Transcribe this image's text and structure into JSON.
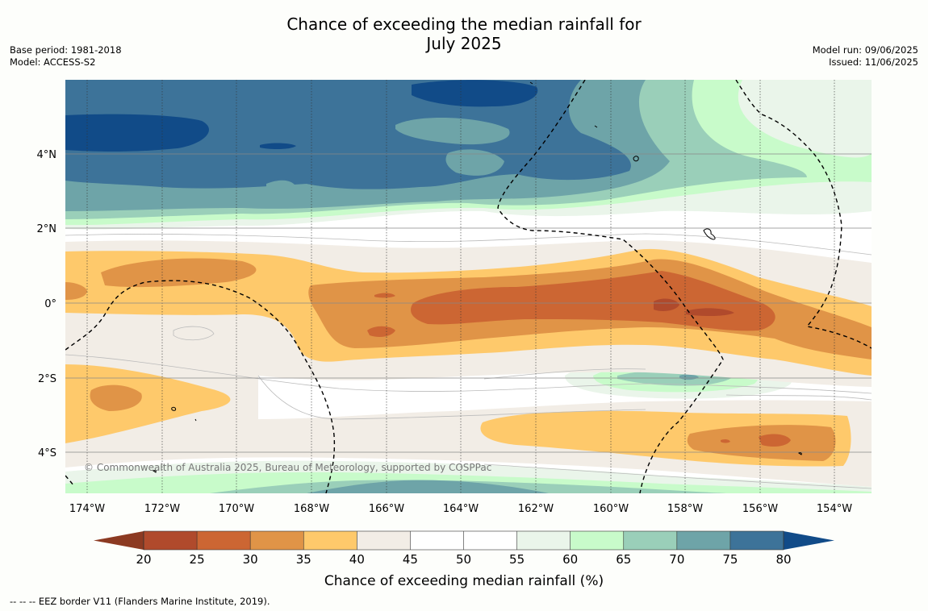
{
  "header": {
    "title_line1": "Chance of exceeding the median rainfall for",
    "title_line2": "July 2025",
    "base_period": "Base period: 1981-2018",
    "model": "Model: ACCESS-S2",
    "model_run": "Model run: 09/06/2025",
    "issued": "Issued: 11/06/2025"
  },
  "map": {
    "lat_labels": [
      "4°N",
      "2°N",
      "0°",
      "2°S",
      "4°S"
    ],
    "lon_labels": [
      "174°W",
      "172°W",
      "170°W",
      "168°W",
      "166°W",
      "164°W",
      "162°W",
      "160°W",
      "158°W",
      "156°W",
      "154°W"
    ],
    "copyright": "© Commonwealth of Australia 2025, Bureau of Meteorology, supported by COSPPac"
  },
  "colorbar": {
    "title": "Chance of exceeding median rainfall (%)",
    "ticks": [
      "20",
      "25",
      "30",
      "35",
      "40",
      "45",
      "50",
      "55",
      "60",
      "65",
      "70",
      "75",
      "80"
    ],
    "colors": [
      "#8c3a22",
      "#b04a2c",
      "#cc6633",
      "#e09447",
      "#fec96b",
      "#f2ede6",
      "#ffffff",
      "#ffffff",
      "#eaf5ea",
      "#c8fbca",
      "#9acfb9",
      "#6ea4a8",
      "#3d7399",
      "#114b88"
    ]
  },
  "footer": {
    "legend_note": "--  --  -- EEZ border V11 (Flanders Marine Institute, 2019)."
  }
}
